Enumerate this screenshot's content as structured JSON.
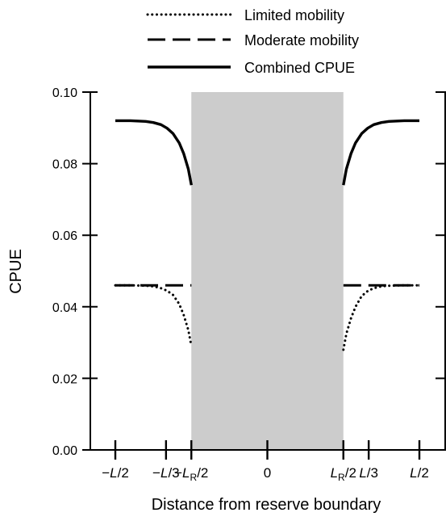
{
  "chart_data": {
    "type": "line",
    "title": "",
    "xlabel": "Distance from reserve boundary",
    "ylabel": "CPUE",
    "xlim": [
      -0.5,
      0.5
    ],
    "ylim": [
      0,
      0.1
    ],
    "grid": false,
    "legend_position": "top",
    "reserve_region": [
      -0.25,
      0.25
    ],
    "y_ticks": [
      {
        "value": 0.0,
        "label": "0.00"
      },
      {
        "value": 0.02,
        "label": "0.02"
      },
      {
        "value": 0.04,
        "label": "0.04"
      },
      {
        "value": 0.06,
        "label": "0.06"
      },
      {
        "value": 0.08,
        "label": "0.08"
      },
      {
        "value": 0.1,
        "label": "0.10"
      }
    ],
    "x_ticks": [
      {
        "value": -0.5,
        "parts": [
          {
            "t": "−",
            "i": false
          },
          {
            "t": "L",
            "i": true
          },
          {
            "t": "/2",
            "i": false
          }
        ]
      },
      {
        "value": -0.3333,
        "parts": [
          {
            "t": "−",
            "i": false
          },
          {
            "t": "L",
            "i": true
          },
          {
            "t": "/3",
            "i": false
          }
        ]
      },
      {
        "value": -0.25,
        "parts": [
          {
            "t": "−",
            "i": false
          },
          {
            "t": "L",
            "i": true
          },
          {
            "t": "R",
            "i": false,
            "sub": true
          },
          {
            "t": "/2",
            "i": false
          }
        ]
      },
      {
        "value": 0,
        "parts": [
          {
            "t": "0",
            "i": false
          }
        ]
      },
      {
        "value": 0.25,
        "parts": [
          {
            "t": "L",
            "i": true
          },
          {
            "t": "R",
            "i": false,
            "sub": true
          },
          {
            "t": "/2",
            "i": false
          }
        ]
      },
      {
        "value": 0.3333,
        "parts": [
          {
            "t": "L",
            "i": true
          },
          {
            "t": "/3",
            "i": false
          }
        ]
      },
      {
        "value": 0.5,
        "parts": [
          {
            "t": "L",
            "i": true
          },
          {
            "t": "/2",
            "i": false
          }
        ]
      }
    ],
    "series": [
      {
        "name": "Limited mobility",
        "style": "dotted",
        "x": [
          -0.5,
          -0.45,
          -0.4,
          -0.375,
          -0.35,
          -0.33,
          -0.31,
          -0.29,
          -0.275,
          -0.26,
          -0.25,
          0.25,
          0.26,
          0.275,
          0.29,
          0.31,
          0.33,
          0.35,
          0.375,
          0.4,
          0.45,
          0.5
        ],
        "y": [
          0.046,
          0.046,
          0.0459,
          0.0457,
          0.0452,
          0.0445,
          0.0433,
          0.0408,
          0.0377,
          0.0335,
          0.029,
          0.028,
          0.0325,
          0.0368,
          0.04,
          0.043,
          0.0444,
          0.0452,
          0.0457,
          0.0459,
          0.046,
          0.046
        ]
      },
      {
        "name": "Moderate mobility",
        "style": "dashed",
        "x": [
          -0.5,
          -0.25,
          0.25,
          0.5
        ],
        "y": [
          0.046,
          0.046,
          0.046,
          0.046
        ]
      },
      {
        "name": "Combined CPUE",
        "style": "solid",
        "x": [
          -0.5,
          -0.45,
          -0.4,
          -0.375,
          -0.35,
          -0.33,
          -0.31,
          -0.29,
          -0.275,
          -0.26,
          -0.25,
          0.25,
          0.26,
          0.275,
          0.29,
          0.31,
          0.33,
          0.35,
          0.375,
          0.4,
          0.45,
          0.5
        ],
        "y": [
          0.092,
          0.092,
          0.0918,
          0.0915,
          0.0909,
          0.0899,
          0.0884,
          0.0858,
          0.0828,
          0.0785,
          0.074,
          0.074,
          0.0785,
          0.0828,
          0.0858,
          0.0884,
          0.0899,
          0.0909,
          0.0915,
          0.0918,
          0.092,
          0.092
        ]
      }
    ]
  },
  "colors": {
    "reserve_fill": "#cccccc",
    "line": "#000000"
  }
}
